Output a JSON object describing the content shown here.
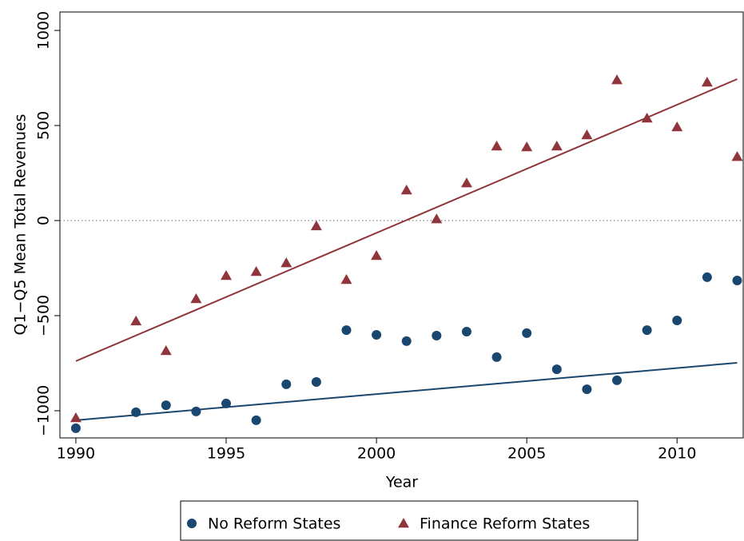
{
  "chart_data": {
    "type": "scatter",
    "x_label": "Year",
    "y_label": "Q1−Q5 Mean Total Revenues",
    "xlim": [
      1989.47,
      2012.2
    ],
    "ylim": [
      -1143,
      1097
    ],
    "xticks": [
      1990,
      1995,
      2000,
      2005,
      2010
    ],
    "yticks": [
      {
        "value": -1000,
        "label": "−1000"
      },
      {
        "value": -500,
        "label": "−500"
      },
      0,
      500,
      1000
    ],
    "reference_line": 0,
    "x": [
      1990,
      1992,
      1993,
      1994,
      1995,
      1996,
      1997,
      1998,
      1999,
      2000,
      2001,
      2002,
      2003,
      2004,
      2005,
      2006,
      2007,
      2008,
      2009,
      2010,
      2011,
      2012
    ],
    "series": [
      {
        "name": "No Reform States",
        "color": "#1a476f",
        "marker": "circle",
        "values": [
          -1092,
          -1008,
          -971,
          -1004,
          -962,
          -1050,
          -861,
          -849,
          -576,
          -601,
          -634,
          -605,
          -584,
          -718,
          -592,
          -782,
          -887,
          -840,
          -576,
          -525,
          -298,
          -315
        ],
        "fit": {
          "x": [
            1990,
            2012
          ],
          "values": [
            -1050,
            -748
          ]
        }
      },
      {
        "name": "Finance Reform States",
        "color": "#90353b",
        "marker": "triangle",
        "values": [
          -1038,
          -529,
          -685,
          -412,
          -290,
          -269,
          -223,
          -29,
          -311,
          -185,
          160,
          8,
          197,
          391,
          387,
          391,
          450,
          739,
          538,
          492,
          727,
          336
        ],
        "fit": {
          "x": [
            1990,
            2012
          ],
          "values": [
            -739,
            744
          ]
        }
      }
    ]
  }
}
